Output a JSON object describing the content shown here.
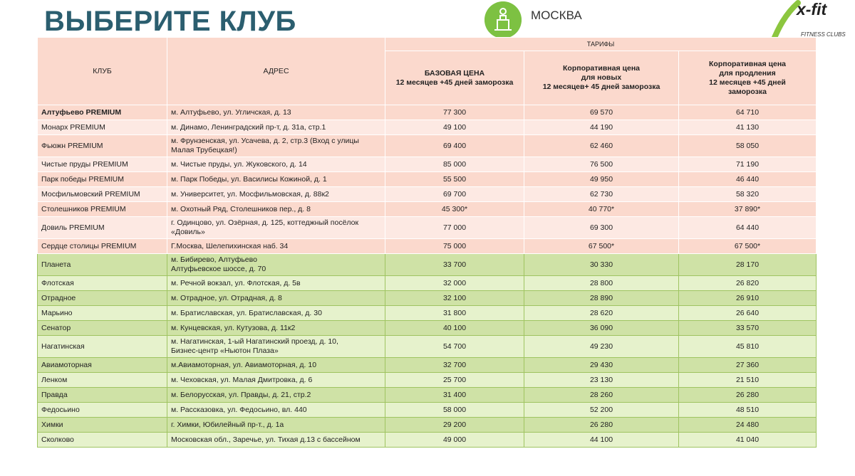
{
  "header": {
    "title": "ВЫБЕРИТЕ КЛУБ",
    "city": "МОСКВА",
    "logo": "x-fit",
    "logo_sub": "FITNESS CLUBS"
  },
  "table": {
    "columns": [
      "КЛУБ",
      "АДРЕС"
    ],
    "group": "ТАРИФЫ",
    "tariffs": [
      "БАЗОВАЯ ЦЕНА\n12 месяцев +45 дней заморозка",
      "Корпоративная цена\nдля новых\n12 месяцев+ 45 дней заморозка",
      "Корпоративная цена\nдля продления\n12 месяцев +45 дней\nзаморозка"
    ],
    "sections": [
      {
        "colors": [
          "#fbd9cd",
          "#fde9e3"
        ],
        "rows": [
          [
            "Алтуфьево PREMIUM",
            "м. Алтуфьево, ул. Угличская, д. 13",
            "77 300",
            "69 570",
            "64 710"
          ],
          [
            "Монарх PREMIUM",
            "м. Динамо, Ленинградский пр-т, д. 31а, стр.1",
            "49 100",
            "44 190",
            "41 130"
          ],
          [
            "Фьюжн PREMIUM",
            "м. Фрунзенская, ул. Усачева, д. 2, стр.3 (Вход с улицы\nМалая Трубецкая!)",
            "69 400",
            "62 460",
            "58 050"
          ],
          [
            "Чистые пруды PREMIUM",
            "м. Чистые пруды, ул. Жуковского, д. 14",
            "85 000",
            "76 500",
            "71 190"
          ],
          [
            "Парк победы PREMIUM",
            "м. Парк Победы, ул. Василисы Кожиной, д. 1",
            "55 500",
            "49 950",
            "46 440"
          ],
          [
            "Мосфильмовский PREMIUM",
            "м. Университет, ул. Мосфильмовская, д. 88к2",
            "69 700",
            "62 730",
            "58 320"
          ],
          [
            "Столешников PREMIUM",
            "м. Охотный Ряд, Столешников пер., д. 8",
            "45 300*",
            "40 770*",
            "37 890*"
          ],
          [
            "Довиль PREMIUM",
            "г. Одинцово, ул. Озёрная, д. 125, коттеджный посёлок\n«Довиль»",
            "77 000",
            "69 300",
            "64 440"
          ],
          [
            "Сердце столицы PREMIUM",
            "Г.Москва, Шелепихинская наб. 34",
            "75 000",
            "67 500*",
            "67 500*"
          ]
        ]
      },
      {
        "colors": [
          "#cfe2a6",
          "#e6f2cc"
        ],
        "rows": [
          [
            "Планета",
            "м. Бибирево, Алтуфьево\nАлтуфьевское шоссе, д. 70",
            "33 700",
            "30 330",
            "28 170"
          ],
          [
            "Флотская",
            "м. Речной вокзал, ул. Флотская, д. 5в",
            "32 000",
            "28 800",
            "26 820"
          ],
          [
            "Отрадное",
            "м. Отрадное, ул. Отрадная, д. 8",
            "32 100",
            "28 890",
            "26 910"
          ],
          [
            "Марьино",
            "м. Братиславская, ул. Братиславская, д. 30",
            "31 800",
            "28 620",
            "26 640"
          ],
          [
            "Сенатор",
            "м. Кунцевская, ул. Кутузова, д. 11к2",
            "40 100",
            "36 090",
            "33 570"
          ],
          [
            "Нагатинская",
            "м. Нагатинская, 1-ый Нагатинский проезд, д. 10,\nБизнес-центр «Ньютон Плаза»",
            "54 700",
            "49 230",
            "45 810"
          ],
          [
            "Авиамоторная",
            "м.Авиамоторная, ул. Авиамоторная, д. 10",
            "32 700",
            "29 430",
            "27 360"
          ],
          [
            "Ленком",
            "м. Чеховская, ул. Малая Дмитровка, д. 6",
            "25 700",
            "23 130",
            "21 510"
          ],
          [
            "Правда",
            "м. Белорусская, ул. Правды, д. 21, стр.2",
            "31 400",
            "28 260",
            "26 280"
          ],
          [
            "Федосьино",
            "м. Рассказовка, ул. Федосьино, вл. 440",
            "58 000",
            "52 200",
            "48 510"
          ],
          [
            "Химки",
            "г. Химки, Юбилейный пр-т., д. 1а",
            "29 200",
            "26 280",
            "24 480"
          ],
          [
            "Сколково",
            "Московская обл., Заречье, ул. Тихая д.13 с бассейном",
            "49 000",
            "44 100",
            "41 040"
          ]
        ]
      }
    ]
  }
}
